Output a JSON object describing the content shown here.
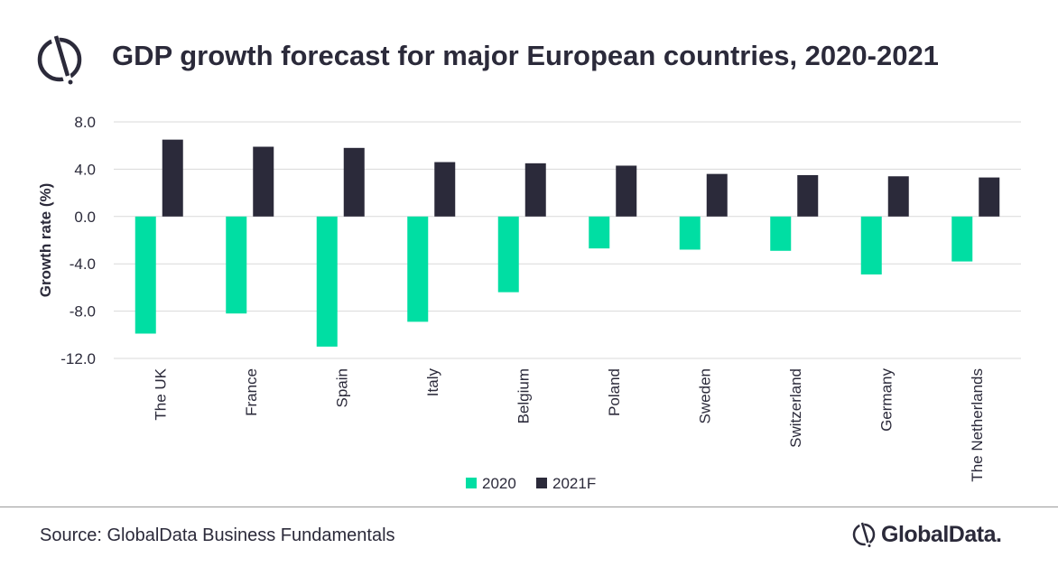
{
  "title": "GDP growth forecast for major European countries, 2020-2021",
  "source": "Source: GlobalData Business Fundamentals",
  "brand": "GlobalData.",
  "colors": {
    "series_2020": "#00dea3",
    "series_2021F": "#2b2a3a",
    "text": "#2b2a3a",
    "grid": "#d9d9d9"
  },
  "icons": {
    "header": "globaldata-logo-icon",
    "footer": "globaldata-logo-icon"
  },
  "chart_data": {
    "type": "bar",
    "title": "GDP growth forecast for major European countries, 2020-2021",
    "xlabel": "",
    "ylabel": "Growth rate (%)",
    "ylim": [
      -12,
      8
    ],
    "yticks": [
      8,
      4,
      0,
      -4,
      -8,
      -12
    ],
    "ytick_labels": [
      "8.0",
      "4.0",
      "0.0",
      "-4.0",
      "-8.0",
      "-12.0"
    ],
    "grid": true,
    "legend_position": "bottom",
    "categories": [
      "The UK",
      "France",
      "Spain",
      "Italy",
      "Belgium",
      "Poland",
      "Sweden",
      "Switzerland",
      "Germany",
      "The Netherlands"
    ],
    "series": [
      {
        "name": "2020",
        "values": [
          -9.9,
          -8.2,
          -11.0,
          -8.9,
          -6.4,
          -2.7,
          -2.8,
          -2.9,
          -4.9,
          -3.8
        ]
      },
      {
        "name": "2021F",
        "values": [
          6.5,
          5.9,
          5.8,
          4.6,
          4.5,
          4.3,
          3.6,
          3.5,
          3.4,
          3.3
        ]
      }
    ]
  }
}
